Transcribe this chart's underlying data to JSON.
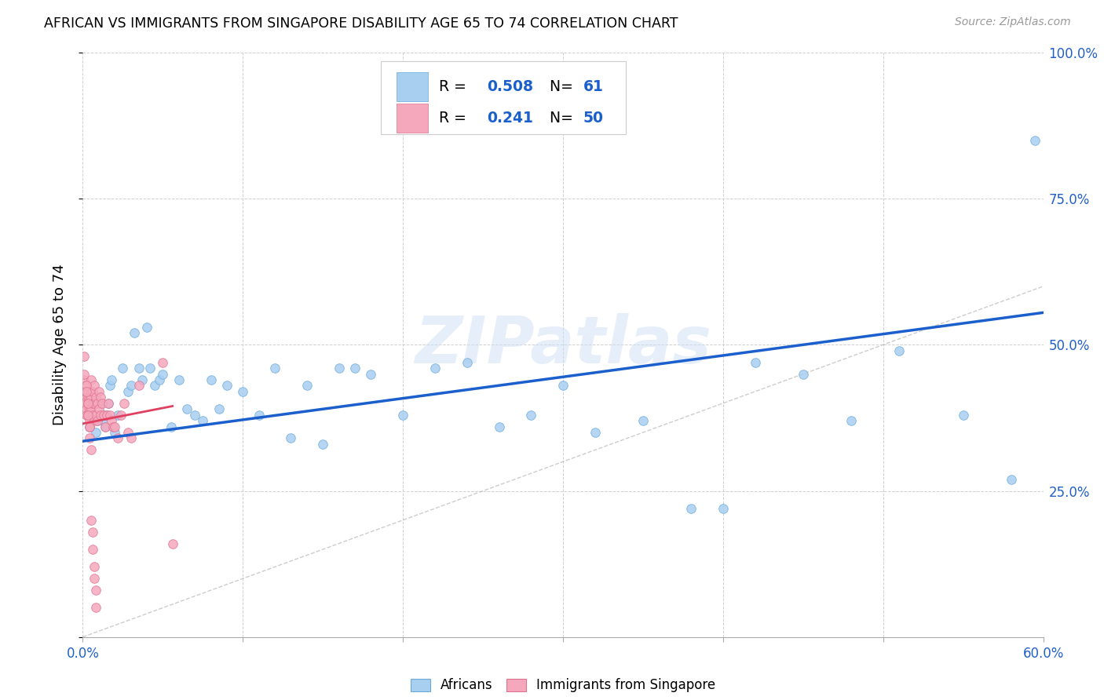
{
  "title": "AFRICAN VS IMMIGRANTS FROM SINGAPORE DISABILITY AGE 65 TO 74 CORRELATION CHART",
  "source": "Source: ZipAtlas.com",
  "ylabel": "Disability Age 65 to 74",
  "xlim": [
    0.0,
    0.6
  ],
  "ylim": [
    0.0,
    1.0
  ],
  "R_african": 0.508,
  "N_african": 61,
  "R_singapore": 0.241,
  "N_singapore": 50,
  "african_color": "#a8cef0",
  "singapore_color": "#f5a8bc",
  "african_edge_color": "#6aabdc",
  "singapore_edge_color": "#e07090",
  "african_line_color": "#1a5fcc",
  "singapore_line_color": "#e04060",
  "watermark": "ZIPatlas",
  "africans_x": [
    0.004,
    0.006,
    0.007,
    0.008,
    0.009,
    0.01,
    0.011,
    0.012,
    0.013,
    0.014,
    0.015,
    0.016,
    0.017,
    0.018,
    0.02,
    0.022,
    0.025,
    0.028,
    0.03,
    0.032,
    0.035,
    0.037,
    0.04,
    0.042,
    0.045,
    0.048,
    0.05,
    0.055,
    0.06,
    0.065,
    0.07,
    0.075,
    0.08,
    0.085,
    0.09,
    0.1,
    0.11,
    0.12,
    0.13,
    0.14,
    0.15,
    0.16,
    0.17,
    0.18,
    0.2,
    0.22,
    0.24,
    0.26,
    0.28,
    0.3,
    0.32,
    0.35,
    0.38,
    0.4,
    0.42,
    0.45,
    0.48,
    0.51,
    0.55,
    0.58,
    0.595
  ],
  "africans_y": [
    0.36,
    0.38,
    0.4,
    0.35,
    0.37,
    0.38,
    0.4,
    0.37,
    0.38,
    0.36,
    0.38,
    0.4,
    0.43,
    0.44,
    0.35,
    0.38,
    0.46,
    0.42,
    0.43,
    0.52,
    0.46,
    0.44,
    0.53,
    0.46,
    0.43,
    0.44,
    0.45,
    0.36,
    0.44,
    0.39,
    0.38,
    0.37,
    0.44,
    0.39,
    0.43,
    0.42,
    0.38,
    0.46,
    0.34,
    0.43,
    0.33,
    0.46,
    0.46,
    0.45,
    0.38,
    0.46,
    0.47,
    0.36,
    0.38,
    0.43,
    0.35,
    0.37,
    0.22,
    0.22,
    0.47,
    0.45,
    0.37,
    0.49,
    0.38,
    0.27,
    0.85
  ],
  "singapore_x": [
    0.001,
    0.001,
    0.001,
    0.002,
    0.002,
    0.002,
    0.002,
    0.003,
    0.003,
    0.003,
    0.003,
    0.004,
    0.004,
    0.004,
    0.004,
    0.005,
    0.005,
    0.005,
    0.005,
    0.006,
    0.006,
    0.006,
    0.007,
    0.007,
    0.007,
    0.008,
    0.008,
    0.009,
    0.009,
    0.01,
    0.01,
    0.011,
    0.011,
    0.012,
    0.013,
    0.014,
    0.015,
    0.016,
    0.017,
    0.018,
    0.019,
    0.02,
    0.022,
    0.024,
    0.026,
    0.028,
    0.03,
    0.035,
    0.05,
    0.056
  ],
  "singapore_y": [
    0.44,
    0.42,
    0.4,
    0.43,
    0.41,
    0.39,
    0.38,
    0.42,
    0.41,
    0.4,
    0.38,
    0.41,
    0.39,
    0.37,
    0.36,
    0.44,
    0.42,
    0.41,
    0.39,
    0.42,
    0.4,
    0.38,
    0.43,
    0.4,
    0.37,
    0.41,
    0.38,
    0.4,
    0.37,
    0.42,
    0.39,
    0.41,
    0.38,
    0.4,
    0.38,
    0.36,
    0.38,
    0.4,
    0.38,
    0.37,
    0.36,
    0.36,
    0.34,
    0.38,
    0.4,
    0.35,
    0.34,
    0.43,
    0.47,
    0.16
  ],
  "singapore_extra_y": [
    0.48,
    0.45,
    0.43,
    0.42,
    0.4,
    0.38,
    0.36,
    0.34,
    0.32,
    0.2,
    0.18,
    0.15,
    0.12,
    0.1,
    0.08,
    0.05
  ],
  "singapore_extra_x": [
    0.001,
    0.001,
    0.002,
    0.002,
    0.003,
    0.003,
    0.004,
    0.004,
    0.005,
    0.005,
    0.006,
    0.006,
    0.007,
    0.007,
    0.008,
    0.008
  ]
}
